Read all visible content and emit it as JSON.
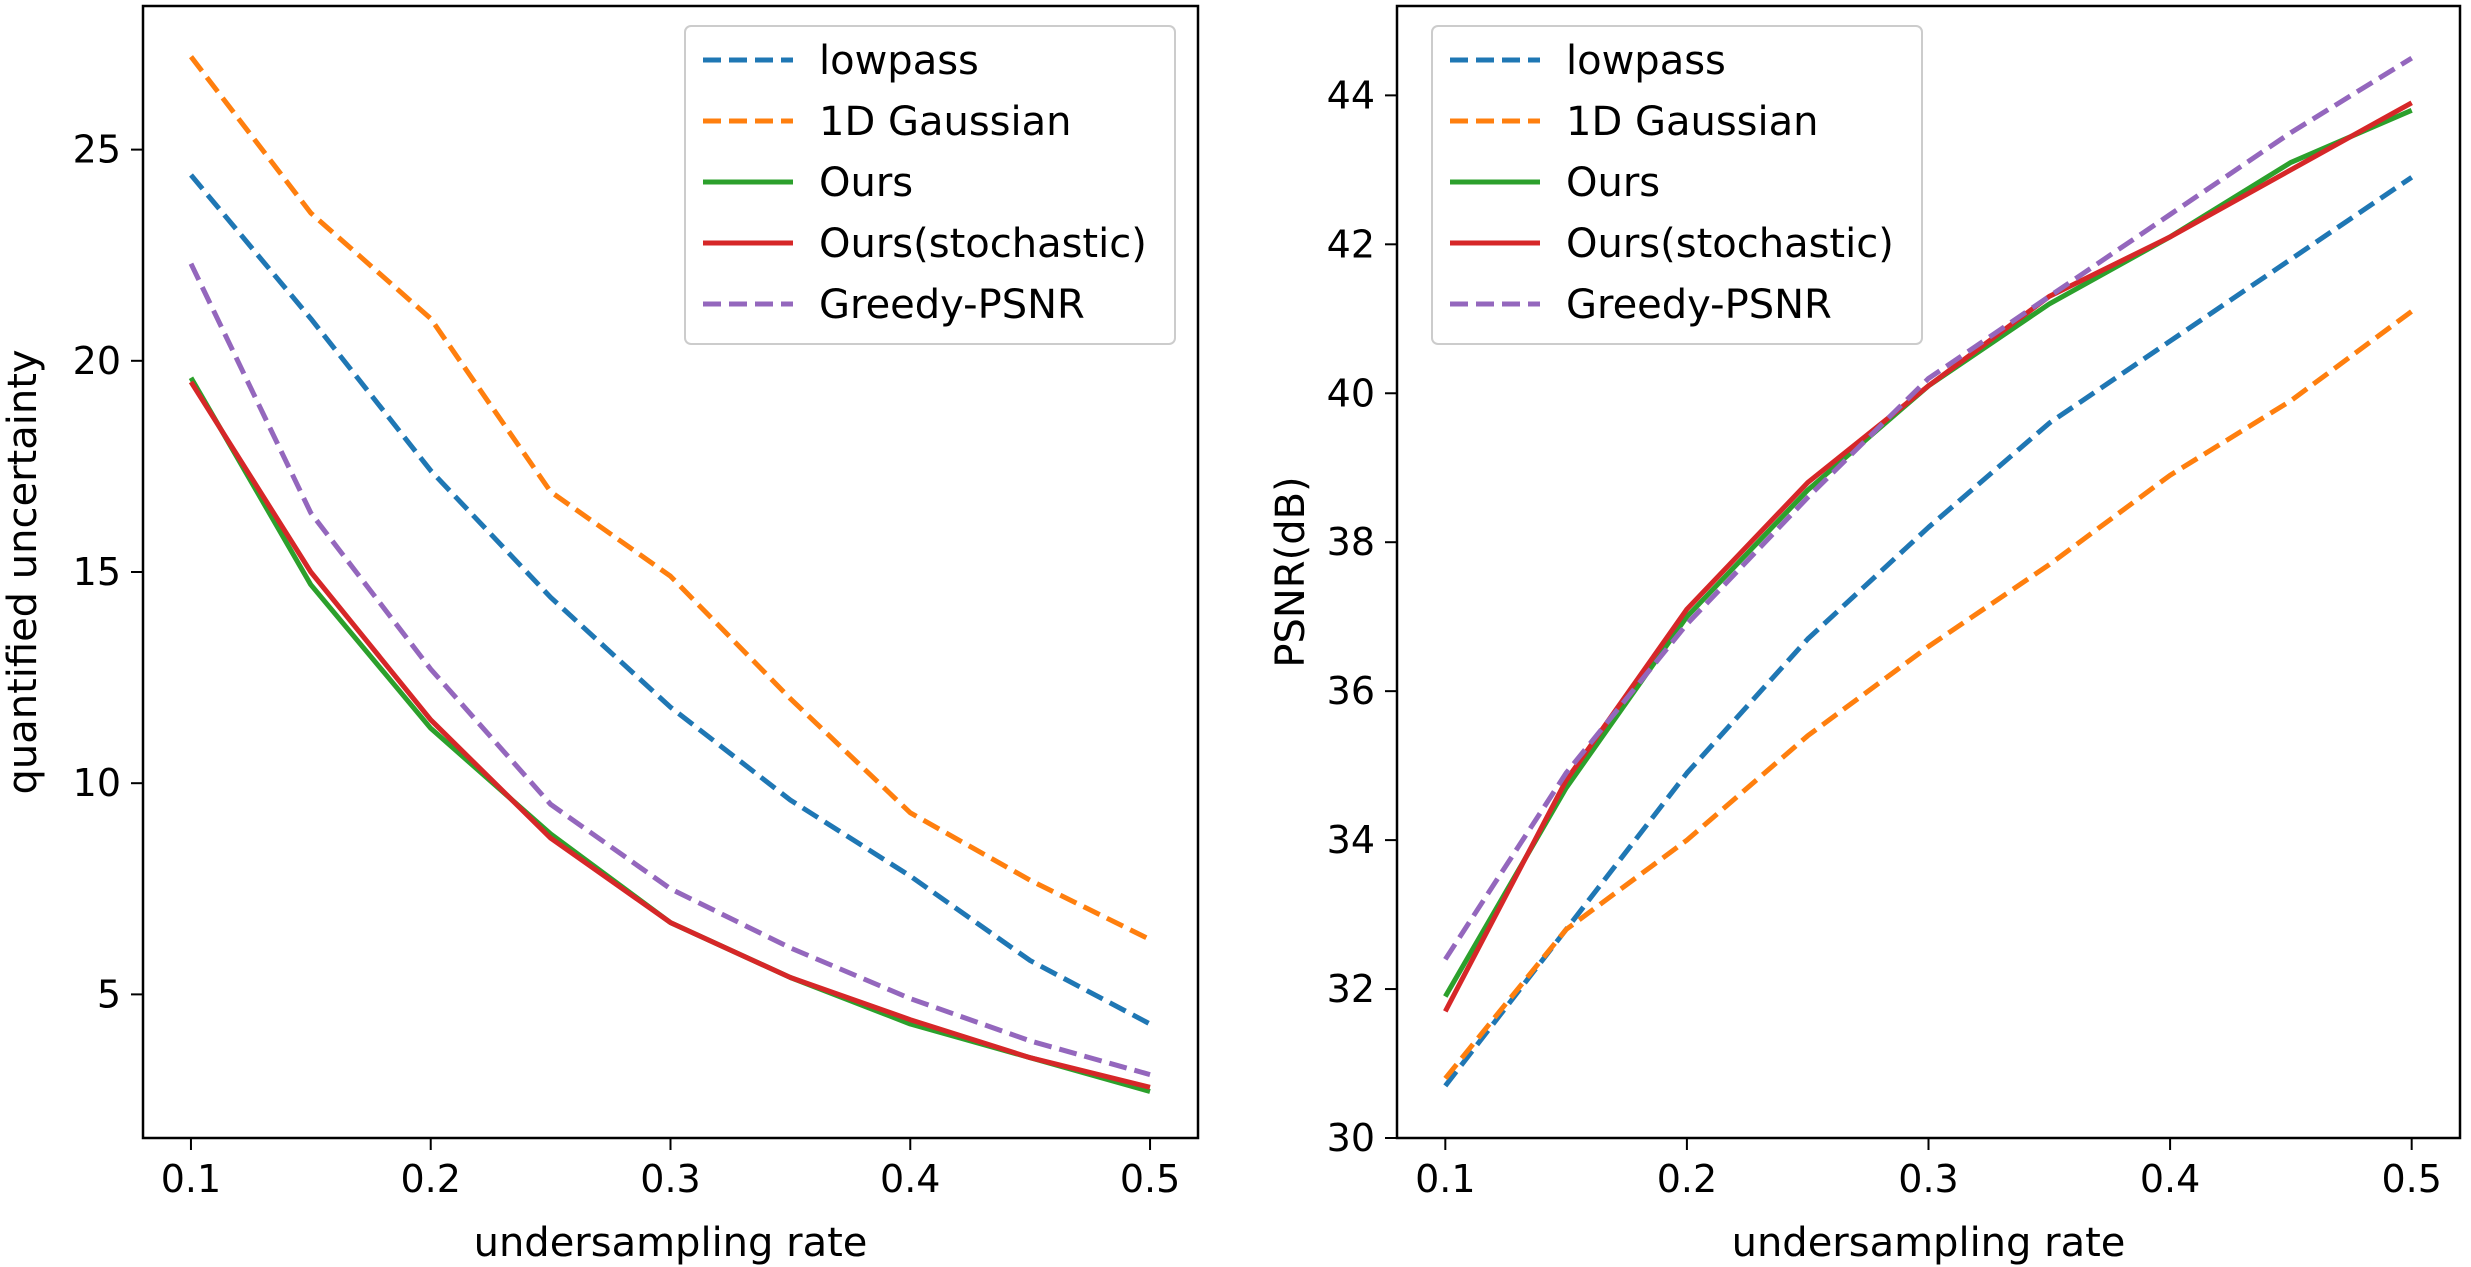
{
  "chart_data": [
    {
      "type": "line",
      "title": "",
      "xlabel": "undersampling rate",
      "ylabel": "quantified uncertainty",
      "x": [
        0.1,
        0.15,
        0.2,
        0.25,
        0.3,
        0.35,
        0.4,
        0.45,
        0.5
      ],
      "xticks": [
        "0.1",
        "0.2",
        "0.3",
        "0.4",
        "0.5"
      ],
      "xtick_values": [
        0.1,
        0.2,
        0.3,
        0.4,
        0.5
      ],
      "yticks": [
        "5",
        "10",
        "15",
        "20",
        "25"
      ],
      "ytick_values": [
        5,
        10,
        15,
        20,
        25
      ],
      "xlim": [
        0.08,
        0.52
      ],
      "ylim": [
        1.6,
        28.4
      ],
      "grid": false,
      "legend_position": "upper right",
      "series": [
        {
          "name": "lowpass",
          "style": "dashed",
          "color": "#1f77b4",
          "values": [
            24.4,
            21.0,
            17.4,
            14.4,
            11.8,
            9.6,
            7.8,
            5.8,
            4.3
          ]
        },
        {
          "name": "1D Gaussian",
          "style": "dashed",
          "color": "#ff7f0e",
          "values": [
            27.2,
            23.5,
            21.0,
            16.9,
            14.9,
            12.0,
            9.3,
            7.7,
            6.3
          ]
        },
        {
          "name": "Ours",
          "style": "solid",
          "color": "#2ca02c",
          "values": [
            19.6,
            14.7,
            11.3,
            8.8,
            6.7,
            5.4,
            4.3,
            3.5,
            2.7
          ]
        },
        {
          "name": "Ours(stochastic)",
          "style": "solid",
          "color": "#d62728",
          "values": [
            19.5,
            15.0,
            11.5,
            8.7,
            6.7,
            5.4,
            4.4,
            3.5,
            2.8
          ]
        },
        {
          "name": "Greedy-PSNR",
          "style": "dashed",
          "color": "#9467bd",
          "values": [
            22.3,
            16.4,
            12.7,
            9.5,
            7.5,
            6.1,
            4.9,
            3.9,
            3.1
          ]
        }
      ]
    },
    {
      "type": "line",
      "title": "",
      "xlabel": "undersampling rate",
      "ylabel": "PSNR(dB)",
      "x": [
        0.1,
        0.15,
        0.2,
        0.25,
        0.3,
        0.35,
        0.4,
        0.45,
        0.5
      ],
      "xticks": [
        "0.1",
        "0.2",
        "0.3",
        "0.4",
        "0.5"
      ],
      "xtick_values": [
        0.1,
        0.2,
        0.3,
        0.4,
        0.5
      ],
      "yticks": [
        "30",
        "32",
        "34",
        "36",
        "38",
        "40",
        "42",
        "44"
      ],
      "ytick_values": [
        30,
        32,
        34,
        36,
        38,
        40,
        42,
        44
      ],
      "xlim": [
        0.08,
        0.52
      ],
      "ylim": [
        30.0,
        45.2
      ],
      "grid": false,
      "legend_position": "upper left",
      "series": [
        {
          "name": "lowpass",
          "style": "dashed",
          "color": "#1f77b4",
          "values": [
            30.7,
            32.8,
            34.9,
            36.7,
            38.2,
            39.6,
            40.7,
            41.8,
            42.9
          ]
        },
        {
          "name": "1D Gaussian",
          "style": "dashed",
          "color": "#ff7f0e",
          "values": [
            30.8,
            32.8,
            34.0,
            35.4,
            36.6,
            37.7,
            38.9,
            39.9,
            41.1
          ]
        },
        {
          "name": "Ours",
          "style": "solid",
          "color": "#2ca02c",
          "values": [
            31.9,
            34.7,
            37.0,
            38.7,
            40.1,
            41.2,
            42.1,
            43.1,
            43.8
          ]
        },
        {
          "name": "Ours(stochastic)",
          "style": "solid",
          "color": "#d62728",
          "values": [
            31.7,
            34.8,
            37.1,
            38.8,
            40.1,
            41.3,
            42.1,
            43.0,
            43.9
          ]
        },
        {
          "name": "Greedy-PSNR",
          "style": "dashed",
          "color": "#9467bd",
          "values": [
            32.4,
            34.9,
            36.9,
            38.6,
            40.2,
            41.3,
            42.4,
            43.5,
            44.5
          ]
        }
      ]
    }
  ]
}
